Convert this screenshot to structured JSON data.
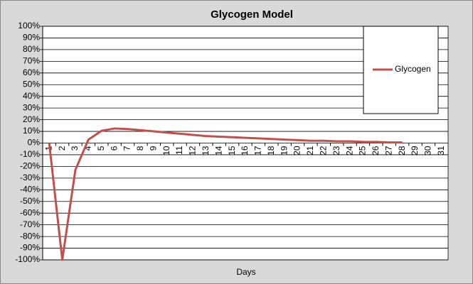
{
  "chart_data": {
    "type": "line",
    "title": "Glycogen Model",
    "x_label": "Days",
    "categories": [
      "1",
      "2",
      "3",
      "4",
      "5",
      "6",
      "7",
      "8",
      "9",
      "10",
      "11",
      "12",
      "13",
      "14",
      "15",
      "16",
      "17",
      "18",
      "19",
      "20",
      "21",
      "22",
      "23",
      "24",
      "25",
      "26",
      "27",
      "28",
      "29",
      "30",
      "31"
    ],
    "series": [
      {
        "name": "Glycogen",
        "color": "#c0504d",
        "values": [
          0,
          -100,
          -23,
          3,
          10.5,
          12.5,
          12,
          11,
          10,
          9,
          8,
          7,
          6,
          5.5,
          5,
          4.5,
          4,
          3.5,
          3,
          2.5,
          2,
          2,
          1.5,
          1.5,
          1,
          1,
          0.5,
          0.5,
          null,
          null,
          null
        ]
      }
    ],
    "ylim": [
      -100,
      100
    ],
    "yticks": [
      {
        "value": -100,
        "label": "-100%"
      },
      {
        "value": -90,
        "label": "-90%"
      },
      {
        "value": -80,
        "label": "-80%"
      },
      {
        "value": -70,
        "label": "-70%"
      },
      {
        "value": -60,
        "label": "-60%"
      },
      {
        "value": -50,
        "label": "-50%"
      },
      {
        "value": -40,
        "label": "-40%"
      },
      {
        "value": -30,
        "label": "-30%"
      },
      {
        "value": -20,
        "label": "-20%"
      },
      {
        "value": -10,
        "label": "-10%"
      },
      {
        "value": 0,
        "label": "0%"
      },
      {
        "value": 10,
        "label": "10%"
      },
      {
        "value": 20,
        "label": "20%"
      },
      {
        "value": 30,
        "label": "30%"
      },
      {
        "value": 40,
        "label": "40%"
      },
      {
        "value": 50,
        "label": "50%"
      },
      {
        "value": 60,
        "label": "60%"
      },
      {
        "value": 70,
        "label": "70%"
      },
      {
        "value": 80,
        "label": "80%"
      },
      {
        "value": 90,
        "label": "90%"
      },
      {
        "value": 100,
        "label": "100%"
      }
    ],
    "grid": true,
    "legend": "right"
  }
}
